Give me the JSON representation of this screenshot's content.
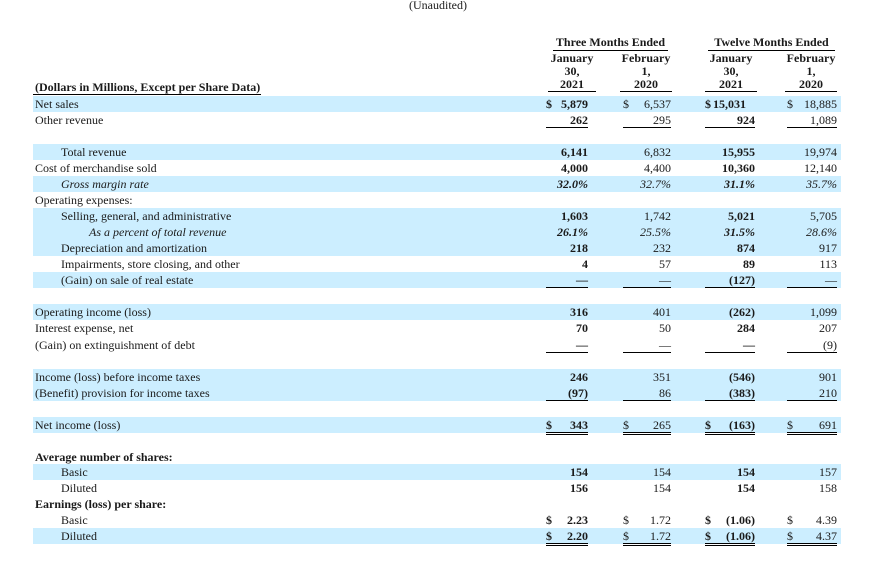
{
  "header": {
    "unaudited": "(Unaudited)",
    "three_months": "Three Months Ended",
    "twelve_months": "Twelve Months Ended",
    "columns": [
      {
        "line1": "January",
        "line2": "30,",
        "line3": "2021"
      },
      {
        "line1": "February",
        "line2": "1,",
        "line3": "2020"
      },
      {
        "line1": "January",
        "line2": "30,",
        "line3": "2021"
      },
      {
        "line1": "February",
        "line2": "1,",
        "line3": "2020"
      }
    ],
    "dollars_label": "(Dollars in Millions, Except per Share Data)"
  },
  "rows": [
    {
      "label": "Net sales",
      "v": [
        "5,879",
        "6,537",
        "15,031",
        "18,885"
      ],
      "cur": [
        true,
        true,
        false,
        true
      ]
    },
    {
      "label": "Other revenue",
      "v": [
        "262",
        "295",
        "924",
        "1,089"
      ]
    },
    {
      "label": "Total revenue",
      "v": [
        "6,141",
        "6,832",
        "15,955",
        "19,974"
      ]
    },
    {
      "label": "Cost of merchandise sold",
      "v": [
        "4,000",
        "4,400",
        "10,360",
        "12,140"
      ]
    },
    {
      "label": "Gross margin rate",
      "v": [
        "32.0%",
        "32.7%",
        "31.1%",
        "35.7%"
      ]
    },
    {
      "label": "Operating expenses:"
    },
    {
      "label": "Selling, general, and administrative",
      "v": [
        "1,603",
        "1,742",
        "5,021",
        "5,705"
      ]
    },
    {
      "label": "As a percent of total revenue",
      "v": [
        "26.1%",
        "25.5%",
        "31.5%",
        "28.6%"
      ]
    },
    {
      "label": "Depreciation and amortization",
      "v": [
        "218",
        "232",
        "874",
        "917"
      ]
    },
    {
      "label": "Impairments, store closing, and other",
      "v": [
        "4",
        "57",
        "89",
        "113"
      ]
    },
    {
      "label": "(Gain) on sale of real estate",
      "v": [
        "—",
        "—",
        "(127)",
        "—"
      ]
    },
    {
      "label": "Operating income (loss)",
      "v": [
        "316",
        "401",
        "(262)",
        "1,099"
      ]
    },
    {
      "label": "Interest expense, net",
      "v": [
        "70",
        "50",
        "284",
        "207"
      ]
    },
    {
      "label": "(Gain) on extinguishment of debt",
      "v": [
        "—",
        "—",
        "—",
        "(9)"
      ]
    },
    {
      "label": "Income (loss) before income taxes",
      "v": [
        "246",
        "351",
        "(546)",
        "901"
      ]
    },
    {
      "label": "(Benefit) provision for income taxes",
      "v": [
        "(97)",
        "86",
        "(383)",
        "210"
      ]
    },
    {
      "label": "Net income (loss)",
      "v": [
        "343",
        "265",
        "(163)",
        "691"
      ]
    },
    {
      "label": "Average number of shares:"
    },
    {
      "label": "Basic",
      "v": [
        "154",
        "154",
        "154",
        "157"
      ]
    },
    {
      "label": "Diluted",
      "v": [
        "156",
        "154",
        "154",
        "158"
      ]
    },
    {
      "label": "Earnings (loss) per share:"
    },
    {
      "label": "Basic",
      "v": [
        "2.23",
        "1.72",
        "(1.06)",
        "4.39"
      ]
    },
    {
      "label": "Diluted",
      "v": [
        "2.20",
        "1.72",
        "(1.06)",
        "4.37"
      ]
    }
  ],
  "currency_symbol": "$",
  "colors": {
    "row_shade": "#cceeff"
  }
}
